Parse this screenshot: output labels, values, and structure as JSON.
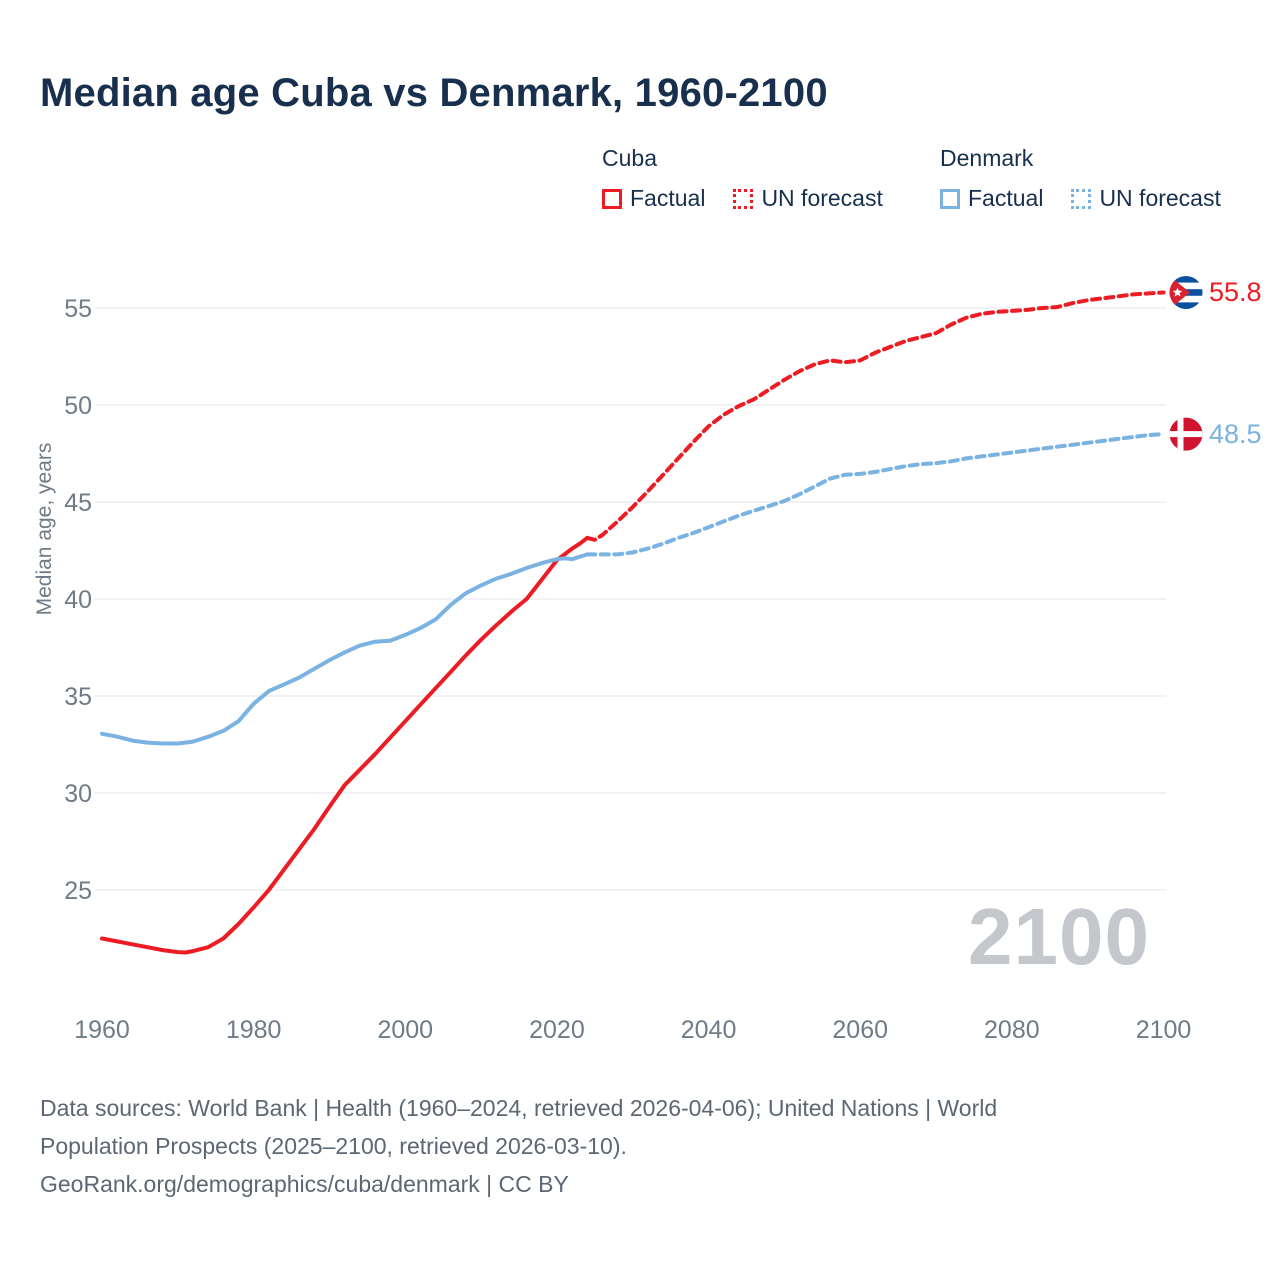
{
  "title": "Median age Cuba vs Denmark, 1960-2100",
  "colors": {
    "cuba": "#ed1c24",
    "denmark": "#7ab2e2",
    "heading": "#18304d",
    "axis_text": "#6f7b87",
    "gridline": "#e9ebed",
    "watermark": "#c4c8cc",
    "footer_text": "#5d6773"
  },
  "legend": {
    "groups": [
      {
        "label": "Cuba",
        "color": "#ed1c24",
        "items": [
          {
            "label": "Factual",
            "line": "solid"
          },
          {
            "label": "UN forecast",
            "line": "dotted"
          }
        ]
      },
      {
        "label": "Denmark",
        "color": "#7ab2e2",
        "items": [
          {
            "label": "Factual",
            "line": "solid"
          },
          {
            "label": "UN forecast",
            "line": "dotted"
          }
        ]
      }
    ]
  },
  "chart_data": {
    "type": "line",
    "title": "Median age Cuba vs Denmark, 1960-2100",
    "xlabel": "",
    "ylabel": "Median age, years",
    "xlim": [
      1960,
      2100
    ],
    "ylim": [
      21,
      57
    ],
    "xticks": [
      1960,
      1980,
      2000,
      2020,
      2040,
      2060,
      2080,
      2100
    ],
    "yticks": [
      25,
      30,
      35,
      40,
      45,
      50,
      55
    ],
    "grid": "horizontal",
    "legend_position": "top-right",
    "watermark": "2100",
    "series": [
      {
        "name": "Cuba — Factual",
        "country": "Cuba",
        "kind": "factual",
        "color": "#ed1c24",
        "dash": false,
        "points": [
          [
            1960,
            22.5
          ],
          [
            1962,
            22.35
          ],
          [
            1964,
            22.2
          ],
          [
            1966,
            22.05
          ],
          [
            1968,
            21.9
          ],
          [
            1970,
            21.8
          ],
          [
            1971,
            21.78
          ],
          [
            1972,
            21.85
          ],
          [
            1974,
            22.05
          ],
          [
            1976,
            22.5
          ],
          [
            1978,
            23.25
          ],
          [
            1980,
            24.1
          ],
          [
            1982,
            25.0
          ],
          [
            1984,
            26.05
          ],
          [
            1986,
            27.1
          ],
          [
            1988,
            28.15
          ],
          [
            1990,
            29.3
          ],
          [
            1992,
            30.4
          ],
          [
            1994,
            31.2
          ],
          [
            1996,
            32.0
          ],
          [
            1998,
            32.85
          ],
          [
            2000,
            33.7
          ],
          [
            2002,
            34.55
          ],
          [
            2004,
            35.4
          ],
          [
            2006,
            36.25
          ],
          [
            2008,
            37.1
          ],
          [
            2010,
            37.9
          ],
          [
            2012,
            38.65
          ],
          [
            2014,
            39.35
          ],
          [
            2016,
            40.0
          ],
          [
            2018,
            41.0
          ],
          [
            2020,
            42.0
          ],
          [
            2022,
            42.6
          ],
          [
            2023,
            42.85
          ],
          [
            2024,
            43.15
          ]
        ]
      },
      {
        "name": "Cuba — UN forecast",
        "country": "Cuba",
        "kind": "forecast",
        "color": "#ed1c24",
        "dash": true,
        "points": [
          [
            2024,
            43.15
          ],
          [
            2025,
            43.05
          ],
          [
            2026,
            43.3
          ],
          [
            2028,
            44.0
          ],
          [
            2030,
            44.75
          ],
          [
            2032,
            45.55
          ],
          [
            2034,
            46.4
          ],
          [
            2036,
            47.25
          ],
          [
            2038,
            48.1
          ],
          [
            2040,
            48.9
          ],
          [
            2042,
            49.5
          ],
          [
            2044,
            49.95
          ],
          [
            2046,
            50.3
          ],
          [
            2048,
            50.8
          ],
          [
            2050,
            51.3
          ],
          [
            2052,
            51.75
          ],
          [
            2054,
            52.1
          ],
          [
            2056,
            52.3
          ],
          [
            2058,
            52.2
          ],
          [
            2060,
            52.3
          ],
          [
            2062,
            52.7
          ],
          [
            2064,
            53.0
          ],
          [
            2066,
            53.3
          ],
          [
            2068,
            53.5
          ],
          [
            2070,
            53.7
          ],
          [
            2072,
            54.15
          ],
          [
            2074,
            54.5
          ],
          [
            2076,
            54.7
          ],
          [
            2078,
            54.8
          ],
          [
            2080,
            54.85
          ],
          [
            2082,
            54.9
          ],
          [
            2084,
            55.0
          ],
          [
            2086,
            55.05
          ],
          [
            2088,
            55.25
          ],
          [
            2090,
            55.4
          ],
          [
            2092,
            55.5
          ],
          [
            2094,
            55.6
          ],
          [
            2096,
            55.7
          ],
          [
            2098,
            55.75
          ],
          [
            2100,
            55.8
          ]
        ],
        "end_value": 55.8
      },
      {
        "name": "Denmark — Factual",
        "country": "Denmark",
        "kind": "factual",
        "color": "#7ab2e2",
        "dash": false,
        "points": [
          [
            1960,
            33.05
          ],
          [
            1962,
            32.9
          ],
          [
            1964,
            32.7
          ],
          [
            1966,
            32.6
          ],
          [
            1968,
            32.55
          ],
          [
            1970,
            32.55
          ],
          [
            1972,
            32.65
          ],
          [
            1974,
            32.9
          ],
          [
            1976,
            33.2
          ],
          [
            1978,
            33.7
          ],
          [
            1980,
            34.6
          ],
          [
            1982,
            35.25
          ],
          [
            1984,
            35.6
          ],
          [
            1986,
            35.95
          ],
          [
            1988,
            36.4
          ],
          [
            1990,
            36.85
          ],
          [
            1992,
            37.25
          ],
          [
            1994,
            37.6
          ],
          [
            1996,
            37.8
          ],
          [
            1998,
            37.85
          ],
          [
            2000,
            38.15
          ],
          [
            2002,
            38.5
          ],
          [
            2004,
            38.95
          ],
          [
            2006,
            39.7
          ],
          [
            2008,
            40.3
          ],
          [
            2010,
            40.7
          ],
          [
            2012,
            41.05
          ],
          [
            2014,
            41.3
          ],
          [
            2016,
            41.6
          ],
          [
            2018,
            41.85
          ],
          [
            2020,
            42.05
          ],
          [
            2021,
            42.1
          ],
          [
            2022,
            42.05
          ],
          [
            2024,
            42.3
          ]
        ]
      },
      {
        "name": "Denmark — UN forecast",
        "country": "Denmark",
        "kind": "forecast",
        "color": "#7ab2e2",
        "dash": true,
        "points": [
          [
            2024,
            42.3
          ],
          [
            2026,
            42.3
          ],
          [
            2028,
            42.3
          ],
          [
            2030,
            42.4
          ],
          [
            2032,
            42.6
          ],
          [
            2034,
            42.85
          ],
          [
            2036,
            43.15
          ],
          [
            2038,
            43.4
          ],
          [
            2040,
            43.7
          ],
          [
            2042,
            44.0
          ],
          [
            2044,
            44.3
          ],
          [
            2046,
            44.55
          ],
          [
            2048,
            44.8
          ],
          [
            2050,
            45.05
          ],
          [
            2052,
            45.4
          ],
          [
            2054,
            45.8
          ],
          [
            2056,
            46.2
          ],
          [
            2058,
            46.4
          ],
          [
            2060,
            46.45
          ],
          [
            2062,
            46.55
          ],
          [
            2064,
            46.7
          ],
          [
            2066,
            46.85
          ],
          [
            2068,
            46.95
          ],
          [
            2070,
            47.0
          ],
          [
            2072,
            47.1
          ],
          [
            2074,
            47.25
          ],
          [
            2076,
            47.35
          ],
          [
            2078,
            47.45
          ],
          [
            2080,
            47.55
          ],
          [
            2082,
            47.65
          ],
          [
            2084,
            47.75
          ],
          [
            2086,
            47.85
          ],
          [
            2088,
            47.95
          ],
          [
            2090,
            48.05
          ],
          [
            2092,
            48.15
          ],
          [
            2094,
            48.25
          ],
          [
            2096,
            48.35
          ],
          [
            2098,
            48.45
          ],
          [
            2100,
            48.5
          ]
        ],
        "end_value": 48.5
      }
    ],
    "end_labels": [
      {
        "country": "Cuba",
        "value": "55.8",
        "color": "#ed1c24",
        "flag": "cuba-flag"
      },
      {
        "country": "Denmark",
        "value": "48.5",
        "color": "#7ab2e2",
        "flag": "denmark-flag"
      }
    ]
  },
  "footer": {
    "line1": "Data sources: World Bank | Health (1960–2024, retrieved 2026-04-06); United Nations | World",
    "line2": "Population Prospects (2025–2100, retrieved 2026-03-10).",
    "line3": "GeoRank.org/demographics/cuba/denmark | CC BY"
  }
}
